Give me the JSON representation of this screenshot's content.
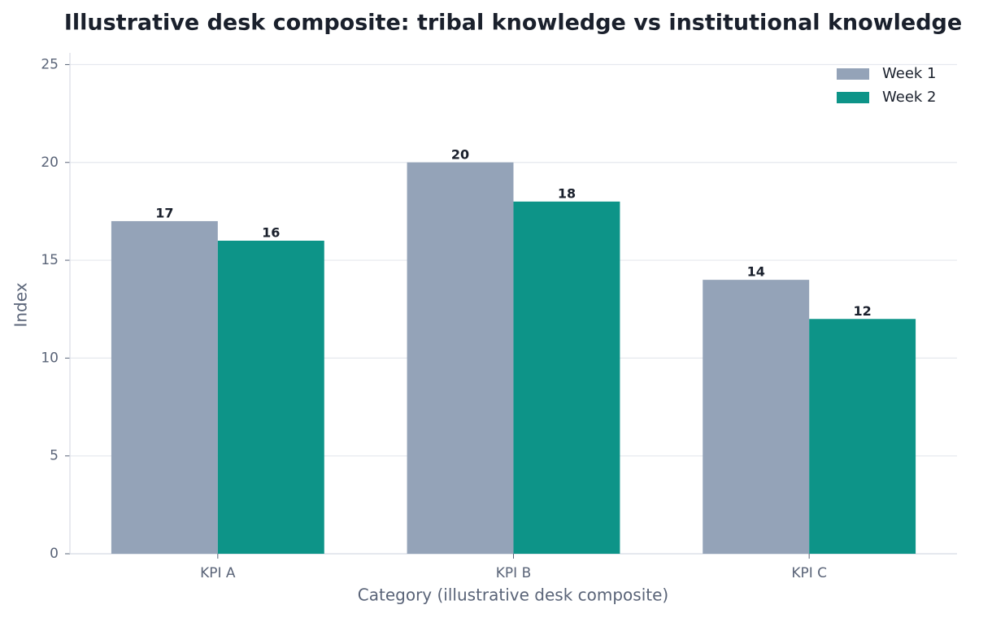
{
  "chart_data": {
    "type": "bar",
    "title": "Illustrative desk composite: tribal knowledge vs institutional knowledge",
    "x_label": "Category (illustrative desk composite)",
    "y_label": "Index",
    "categories": [
      "KPI A",
      "KPI B",
      "KPI C"
    ],
    "series": [
      {
        "name": "Week 1",
        "color": "#94a3b8",
        "values": [
          17,
          20,
          14
        ]
      },
      {
        "name": "Week 2",
        "color": "#0d9488",
        "values": [
          16,
          18,
          12
        ]
      }
    ],
    "ylim": [
      0,
      25.6
    ],
    "yticks": [
      0,
      5,
      10,
      15,
      20,
      25
    ],
    "grid": true,
    "legend": "upper-right"
  }
}
